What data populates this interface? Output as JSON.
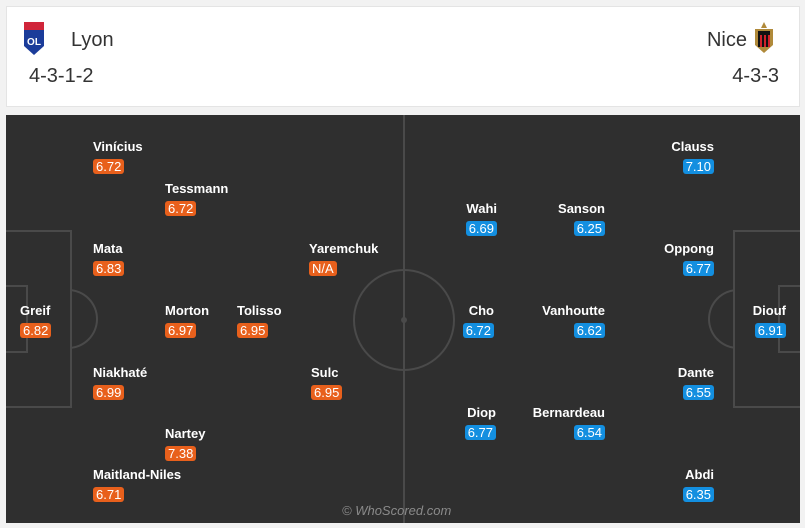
{
  "home": {
    "name": "Lyon",
    "formation": "4-3-1-2",
    "crest_icon": "lyon-crest",
    "color": "#e8601c",
    "players": [
      {
        "name": "Vinícius",
        "rating": "6.72"
      },
      {
        "name": "Tessmann",
        "rating": "6.72"
      },
      {
        "name": "Mata",
        "rating": "6.83"
      },
      {
        "name": "Yaremchuk",
        "rating": "N/A"
      },
      {
        "name": "Greif",
        "rating": "6.82"
      },
      {
        "name": "Morton",
        "rating": "6.97"
      },
      {
        "name": "Tolisso",
        "rating": "6.95"
      },
      {
        "name": "Niakhaté",
        "rating": "6.99"
      },
      {
        "name": "Sulc",
        "rating": "6.95"
      },
      {
        "name": "Nartey",
        "rating": "7.38"
      },
      {
        "name": "Maitland-Niles",
        "rating": "6.71"
      }
    ]
  },
  "away": {
    "name": "Nice",
    "formation": "4-3-3",
    "crest_icon": "nice-crest",
    "color": "#138fe0",
    "players": [
      {
        "name": "Clauss",
        "rating": "7.10"
      },
      {
        "name": "Wahi",
        "rating": "6.69"
      },
      {
        "name": "Sanson",
        "rating": "6.25"
      },
      {
        "name": "Oppong",
        "rating": "6.77"
      },
      {
        "name": "Cho",
        "rating": "6.72"
      },
      {
        "name": "Vanhoutte",
        "rating": "6.62"
      },
      {
        "name": "Diouf",
        "rating": "6.91"
      },
      {
        "name": "Dante",
        "rating": "6.55"
      },
      {
        "name": "Diop",
        "rating": "6.77"
      },
      {
        "name": "Bernardeau",
        "rating": "6.54"
      },
      {
        "name": "Abdi",
        "rating": "6.35"
      }
    ]
  },
  "watermark": "© WhoScored.com"
}
